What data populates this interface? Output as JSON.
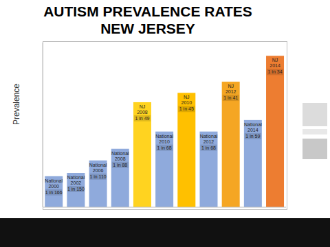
{
  "chart_data": {
    "type": "bar",
    "title": "AUTISM PREVALENCE RATES",
    "subtitle": "NEW JERSEY",
    "y_label": "Prevalence",
    "categories": [
      "National 2000",
      "National 2002",
      "National 2006",
      "National 2008",
      "NJ 2008",
      "National 2010",
      "NJ 2010",
      "National 2012",
      "NJ 2012",
      "National 2014",
      "NJ 2014"
    ],
    "values": [
      0.006024,
      0.006667,
      0.009091,
      0.011364,
      0.020408,
      0.014706,
      0.022222,
      0.014706,
      0.02439,
      0.016949,
      0.029412
    ],
    "value_labels": [
      "1 in 166",
      "1 in 150",
      "1 in 110",
      "1 in 88",
      "1 in 49",
      "1 in 68",
      "1 in 45",
      "1 in 68",
      "1 in 41",
      "1 in 59",
      "1 in 34"
    ],
    "colors": [
      "#8faadc",
      "#8faadc",
      "#8faadc",
      "#8faadc",
      "#ffd320",
      "#8faadc",
      "#ffc000",
      "#8faadc",
      "#f5a623",
      "#8faadc",
      "#ed7d31"
    ],
    "ylim": [
      0,
      0.032
    ],
    "grid": false,
    "data_labels": true,
    "tick_labels": false
  }
}
